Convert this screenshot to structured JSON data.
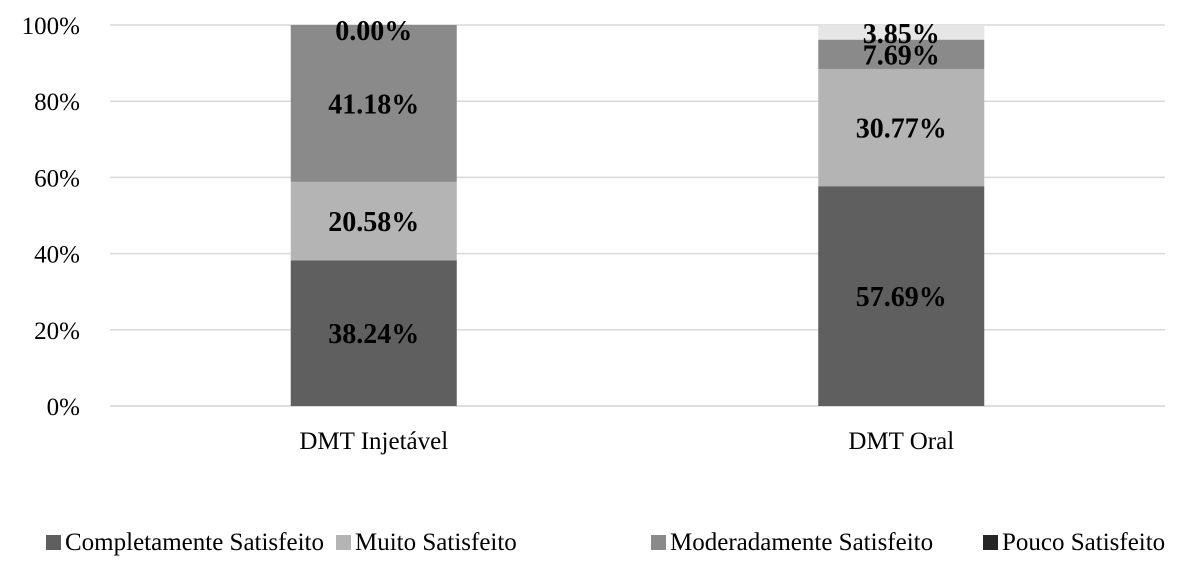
{
  "chart_data": {
    "type": "bar",
    "stacked": true,
    "categories": [
      "DMT Injetável",
      "DMT Oral"
    ],
    "yticks": [
      "0%",
      "20%",
      "40%",
      "60%",
      "80%",
      "100%"
    ],
    "ylim": [
      0,
      100
    ],
    "grid": true,
    "legend_position": "bottom",
    "series": [
      {
        "name": "Completamente Satisfeito",
        "color": "#5f5f5f",
        "values": [
          38.24,
          57.69
        ],
        "labels": [
          "38.24%",
          "57.69%"
        ]
      },
      {
        "name": "Muito Satisfeito",
        "color": "#b4b4b4",
        "values": [
          20.58,
          30.77
        ],
        "labels": [
          "20.58%",
          "30.77%"
        ]
      },
      {
        "name": "Moderadamente Satisfeito",
        "color": "#8a8a8a",
        "values": [
          41.18,
          7.69
        ],
        "labels": [
          "41.18%",
          "7.69%"
        ]
      },
      {
        "name": "Pouco Satisfeito",
        "color": "#262626",
        "values": [
          0.0,
          0.0
        ],
        "labels": [
          "",
          ""
        ]
      },
      {
        "name": "",
        "color": "#e6e6e6",
        "values": [
          0.0,
          3.85
        ],
        "labels": [
          "0.00%",
          "3.85%"
        ],
        "in_legend": false
      }
    ]
  }
}
